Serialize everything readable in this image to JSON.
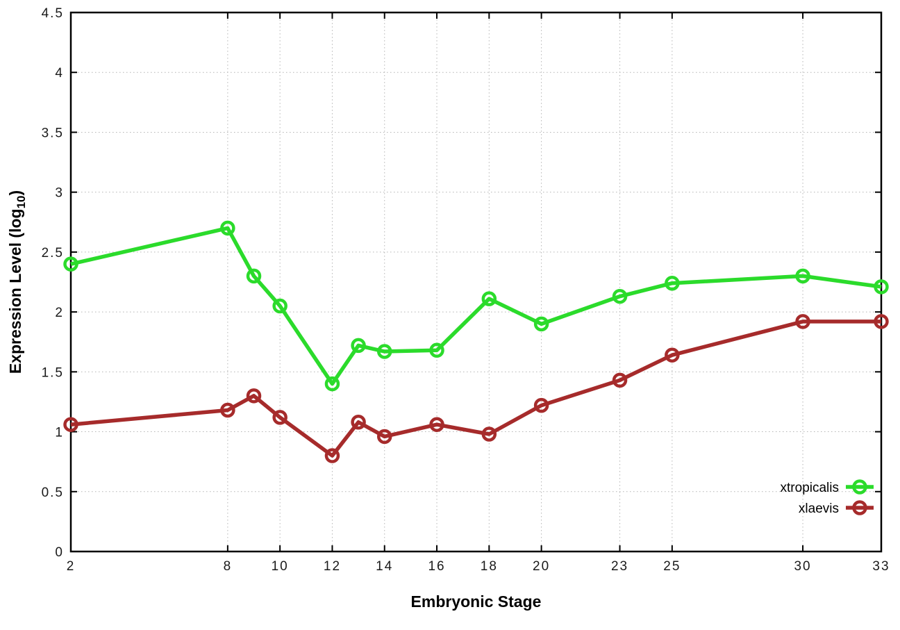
{
  "chart_data": {
    "type": "line",
    "title": "",
    "xlabel": "Embryonic Stage",
    "ylabel": "Expression Level (log10)",
    "ylabel_parts": {
      "prefix": "Expression Level (log",
      "sub": "10",
      "suffix": ")"
    },
    "x": [
      2,
      8,
      9,
      10,
      12,
      13,
      14,
      16,
      18,
      20,
      23,
      25,
      30,
      33
    ],
    "series": [
      {
        "name": "xtropicalis",
        "color": "#2bdb2b",
        "values": [
          2.4,
          2.7,
          2.3,
          2.05,
          1.4,
          1.72,
          1.67,
          1.68,
          2.11,
          1.9,
          2.13,
          2.24,
          2.3,
          2.21
        ]
      },
      {
        "name": "xlaevis",
        "color": "#a62b2b",
        "values": [
          1.06,
          1.18,
          1.3,
          1.12,
          0.8,
          1.08,
          0.96,
          1.06,
          0.98,
          1.22,
          1.43,
          1.64,
          1.92,
          1.92
        ]
      }
    ],
    "xticks": [
      2,
      8,
      10,
      12,
      14,
      16,
      18,
      20,
      23,
      25,
      30,
      33
    ],
    "yticks": [
      0,
      0.5,
      1,
      1.5,
      2,
      2.5,
      3,
      3.5,
      4,
      4.5
    ],
    "xlim": [
      2,
      33
    ],
    "ylim": [
      0,
      4.5
    ],
    "grid": true,
    "grid_color": "#b4b4b4",
    "border_color": "#000000",
    "background_color": "#ffffff",
    "legend_position": "bottom-right",
    "marker": "open-circle"
  }
}
